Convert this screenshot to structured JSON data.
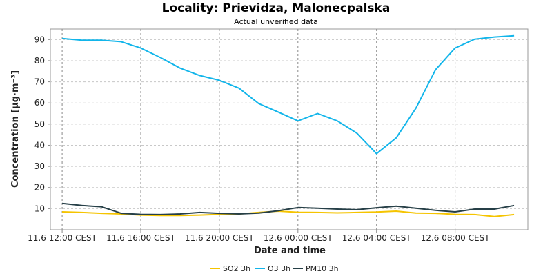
{
  "chart_data": {
    "type": "line",
    "title": "Locality: Prievidza, Malonecpalska",
    "subtitle": "Actual unverified data",
    "xlabel": "Date and time",
    "ylabel": "Concentration [µg·m⁻³]",
    "ylim": [
      0,
      95
    ],
    "yticks": [
      10,
      20,
      30,
      40,
      50,
      60,
      70,
      80,
      90
    ],
    "x_tick_labels": [
      {
        "label": "11.6 12:00 CEST",
        "hour": 0
      },
      {
        "label": "11.6 16:00 CEST",
        "hour": 4
      },
      {
        "label": "11.6 20:00 CEST",
        "hour": 8
      },
      {
        "label": "12.6 00:00 CEST",
        "hour": 12
      },
      {
        "label": "12.6 04:00 CEST",
        "hour": 16
      },
      {
        "label": "12.6 08:00 CEST",
        "hour": 20
      }
    ],
    "x_range_hours": [
      -0.6,
      23.7
    ],
    "x_hours": [
      0,
      1,
      2,
      3,
      4,
      5,
      6,
      7,
      8,
      9,
      10,
      11,
      12,
      13,
      14,
      15,
      16,
      17,
      18,
      19,
      20,
      21,
      22,
      23
    ],
    "grid": true,
    "legend_position": "bottom",
    "series": [
      {
        "name": "SO2 3h",
        "color": "#f5c400",
        "values": [
          8.5,
          8.2,
          7.8,
          7.5,
          7.0,
          6.8,
          6.8,
          7.0,
          7.3,
          7.5,
          8.2,
          8.8,
          8.3,
          8.2,
          8.0,
          8.2,
          8.4,
          8.8,
          7.9,
          7.8,
          7.3,
          7.2,
          6.3,
          7.2
        ]
      },
      {
        "name": "O3 3h",
        "color": "#12b5ea",
        "values": [
          90.5,
          89.7,
          89.7,
          89.0,
          86.0,
          81.5,
          76.5,
          73.0,
          70.7,
          67.0,
          59.7,
          55.7,
          51.5,
          55.0,
          51.5,
          45.7,
          36.0,
          43.5,
          57.5,
          75.7,
          86.0,
          90.2,
          91.2,
          91.8
        ]
      },
      {
        "name": "PM10 3h",
        "color": "#263f47",
        "values": [
          12.5,
          11.5,
          10.9,
          7.8,
          7.3,
          7.2,
          7.5,
          8.2,
          7.8,
          7.5,
          7.9,
          9.0,
          10.5,
          10.2,
          9.8,
          9.5,
          10.4,
          11.2,
          10.2,
          9.2,
          8.5,
          9.8,
          9.8,
          11.5
        ]
      }
    ]
  }
}
